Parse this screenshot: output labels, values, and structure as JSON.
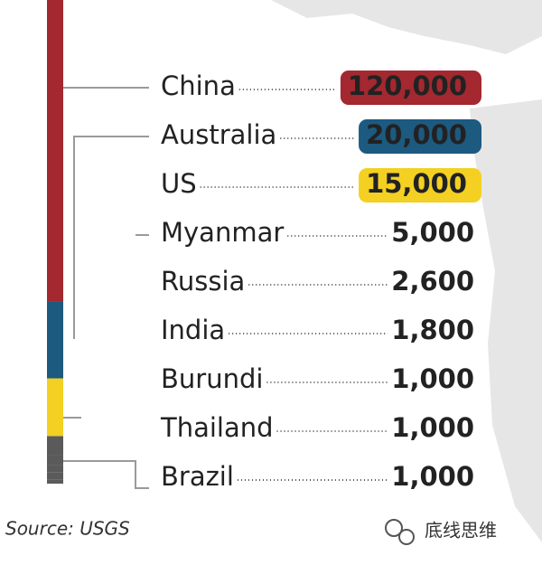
{
  "chart_data": {
    "type": "stacked-column",
    "categories": [
      "China",
      "Australia",
      "US",
      "Myanmar",
      "Russia",
      "India",
      "Burundi",
      "Thailand",
      "Brazil"
    ],
    "values": [
      120000,
      20000,
      15000,
      5000,
      2600,
      1800,
      1000,
      1000,
      1000
    ],
    "value_labels": [
      "120,000",
      "20,000",
      "15,000",
      "5,000",
      "2,600",
      "1,800",
      "1,000",
      "1,000",
      "1,000"
    ],
    "colors": [
      "#a3282f",
      "#1c5a80",
      "#f3d022",
      "#5a5a5a",
      "#5a5a5a",
      "#5a5a5a",
      "#5a5a5a",
      "#5a5a5a",
      "#5a5a5a"
    ],
    "badge": [
      true,
      true,
      true,
      false,
      false,
      false,
      false,
      false,
      false
    ],
    "source": "Source: USGS",
    "watermark": "底线思维"
  }
}
